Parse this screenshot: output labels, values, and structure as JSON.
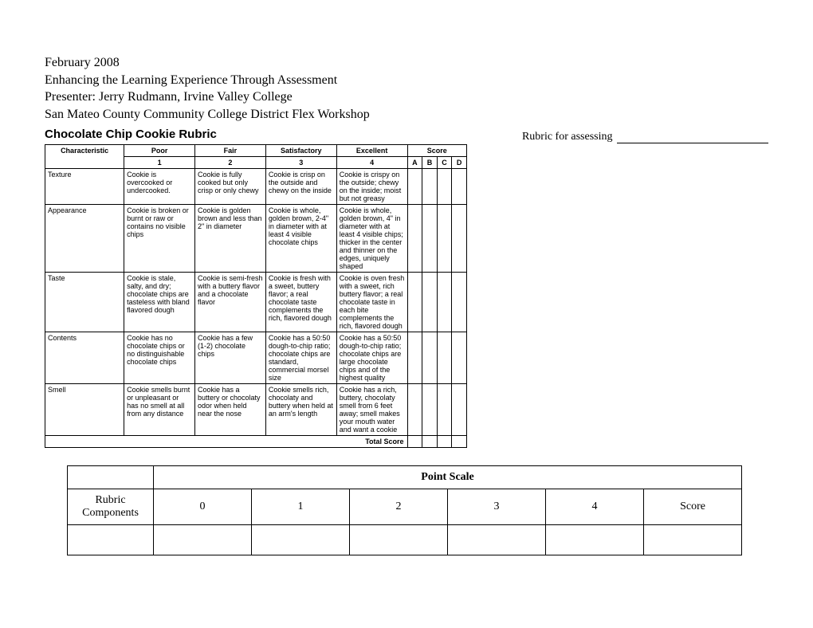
{
  "header": {
    "line1": "February 2008",
    "line2": "Enhancing the Learning Experience Through Assessment",
    "line3": "Presenter: Jerry Rudmann, Irvine Valley College",
    "line4": "San Mateo County Community College District Flex Workshop"
  },
  "assessing_label": "Rubric for assessing",
  "rubric_title": "Chocolate Chip Cookie Rubric",
  "cookie_rubric": {
    "char_header": "Characteristic",
    "levels": [
      {
        "name": "Poor",
        "num": "1"
      },
      {
        "name": "Fair",
        "num": "2"
      },
      {
        "name": "Satisfactory",
        "num": "3"
      },
      {
        "name": "Excellent",
        "num": "4"
      }
    ],
    "score_header": "Score",
    "score_cols": [
      "A",
      "B",
      "C",
      "D"
    ],
    "rows": [
      {
        "char": "Texture",
        "cells": [
          "Cookie is overcooked or undercooked.",
          "Cookie is fully cooked but only crisp or only chewy",
          "Cookie is crisp on the outside and chewy on the inside",
          "Cookie is crispy on the outside; chewy on the inside; moist but not greasy"
        ]
      },
      {
        "char": "Appearance",
        "cells": [
          "Cookie is broken or burnt or raw or contains no visible chips",
          "Cookie is golden brown and less than 2\" in diameter",
          "Cookie is whole, golden brown, 2-4\" in diameter with at least 4 visible chocolate chips",
          "Cookie is whole, golden brown, 4\" in diameter with at least 4 visible chips; thicker in the center and thinner on the edges, uniquely shaped"
        ]
      },
      {
        "char": "Taste",
        "cells": [
          "Cookie is stale, salty, and dry; chocolate chips are tasteless with bland flavored dough",
          "Cookie is semi-fresh with a buttery flavor and a chocolate flavor",
          "Cookie is fresh with a sweet, buttery flavor; a real chocolate taste complements the rich, flavored dough",
          "Cookie is oven fresh with a sweet, rich buttery flavor; a real chocolate taste in each bite complements the rich, flavored dough"
        ]
      },
      {
        "char": "Contents",
        "cells": [
          "Cookie has no chocolate chips or no distinguishable chocolate chips",
          "Cookie has a few (1-2) chocolate chips",
          "Cookie has a 50:50 dough-to-chip ratio; chocolate chips are standard, commercial morsel size",
          "Cookie has a 50:50 dough-to-chip ratio; chocolate chips are large chocolate chips and of the highest quality"
        ]
      },
      {
        "char": "Smell",
        "cells": [
          "Cookie smells burnt or unpleasant or has no smell at all from any distance",
          "Cookie has a buttery or chocolaty odor when held near the nose",
          "Cookie smells rich, chocolaty and buttery when held at an arm's length",
          "Cookie has a rich, buttery, chocolaty smell from 6 feet away; smell makes your mouth water and want a cookie"
        ]
      }
    ],
    "total_label": "Total Score"
  },
  "point_scale": {
    "header": "Point Scale",
    "row_label": "Rubric Components",
    "points": [
      "0",
      "1",
      "2",
      "3",
      "4"
    ],
    "score_label": "Score"
  }
}
